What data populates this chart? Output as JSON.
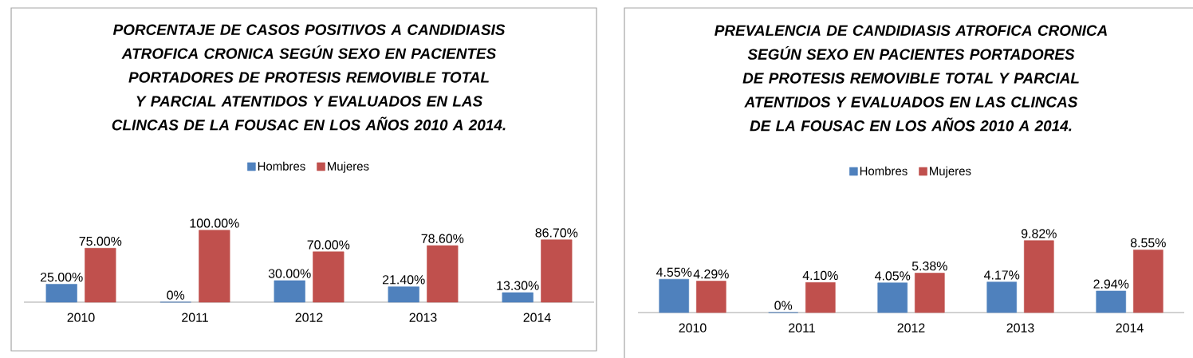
{
  "chart_data": [
    {
      "type": "bar",
      "title": "PORCENTAJE DE CASOS POSITIVOS A CANDIDIASIS ATROFICA CRONICA SEGÚN SEXO EN PACIENTES PORTADORES DE PROTESIS REMOVIBLE TOTAL Y PARCIAL ATENTIDOS Y EVALUADOS EN LAS CLINCAS DE LA FOUSAC EN LOS AÑOS 2010 A 2014.",
      "categories": [
        "2010",
        "2011",
        "2012",
        "2013",
        "2014"
      ],
      "legend": "top",
      "series": [
        {
          "name": "Hombres",
          "color": "#4f81bd",
          "values": [
            25,
            0,
            30,
            21.4,
            13.3
          ],
          "value_labels": [
            "25.00%",
            "0%",
            "30.00%",
            "21.40%",
            "13.30%"
          ]
        },
        {
          "name": "Mujeres",
          "color": "#c0504d",
          "values": [
            75,
            100,
            70,
            78.6,
            86.7
          ],
          "value_labels": [
            "75.00%",
            "100.00%",
            "70.00%",
            "78.60%",
            "86.70%"
          ]
        }
      ]
    },
    {
      "type": "bar",
      "title": "PREVALENCIA DE CANDIDIASIS ATROFICA CRONICA SEGÚN SEXO EN PACIENTES PORTADORES DE PROTESIS REMOVIBLE TOTAL Y PARCIAL ATENTIDOS Y EVALUADOS EN LAS CLINCAS DE LA FOUSAC EN LOS AÑOS 2010 A 2014.",
      "categories": [
        "2010",
        "2011",
        "2012",
        "2013",
        "2014"
      ],
      "legend": "top",
      "series": [
        {
          "name": "Hombres",
          "color": "#4f81bd",
          "values": [
            4.55,
            0,
            4.05,
            4.17,
            2.94
          ],
          "value_labels": [
            "4.55%",
            "0%",
            "4.05%",
            "4.17%",
            "2.94%"
          ]
        },
        {
          "name": "Mujeres",
          "color": "#c0504d",
          "values": [
            4.29,
            4.1,
            5.38,
            9.82,
            8.55
          ],
          "value_labels": [
            "4.29%",
            "4.10%",
            "5.38%",
            "9.82%",
            "8.55%"
          ]
        }
      ]
    }
  ]
}
